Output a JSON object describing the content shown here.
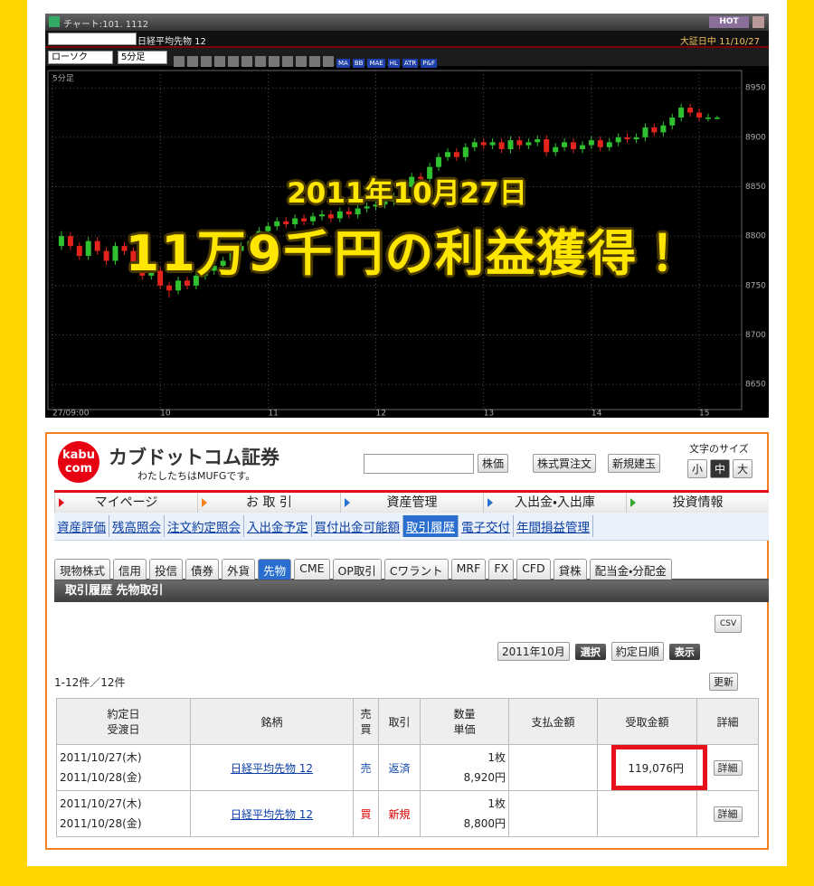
{
  "chart_window": {
    "title": "チャート:101. 1112",
    "hot": "HOT",
    "symbol": "日経平均先物 12",
    "session": "大証日中 11/10/27",
    "chart_type": "ローソク",
    "interval": "5分足",
    "toolbar": [
      "MA",
      "BB",
      "MAE",
      "HL",
      "ATR",
      "P&F"
    ]
  },
  "chart_data": {
    "type": "candlestick",
    "label": "5分足",
    "up_color": "#2fc12f",
    "down_color": "#e3241d",
    "grid": true,
    "x": [
      9.083,
      9.167,
      9.25,
      9.333,
      9.417,
      9.5,
      9.583,
      9.667,
      9.75,
      9.833,
      9.917,
      10,
      10.083,
      10.167,
      10.25,
      10.333,
      10.417,
      10.5,
      10.583,
      10.667,
      10.75,
      10.833,
      10.917,
      11,
      11.083,
      11.167,
      11.25,
      11.333,
      11.417,
      11.5,
      11.583,
      11.667,
      11.75,
      11.833,
      11.917,
      12,
      12.083,
      12.167,
      12.25,
      12.333,
      12.417,
      12.5,
      12.583,
      12.667,
      12.75,
      12.833,
      12.917,
      13,
      13.083,
      13.167,
      13.25,
      13.333,
      13.417,
      13.5,
      13.583,
      13.667,
      13.75,
      13.833,
      13.917,
      14,
      14.083,
      14.167,
      14.25,
      14.333,
      14.417,
      14.5,
      14.583,
      14.667,
      14.75,
      14.833,
      14.917,
      15,
      15.083,
      15.167
    ],
    "open": [
      8790,
      8800,
      8790,
      8780,
      8795,
      8785,
      8775,
      8790,
      8785,
      8770,
      8760,
      8765,
      8750,
      8745,
      8755,
      8750,
      8760,
      8765,
      8770,
      8775,
      8785,
      8790,
      8795,
      8805,
      8810,
      8815,
      8812,
      8818,
      8815,
      8820,
      8822,
      8818,
      8825,
      8822,
      8828,
      8830,
      8832,
      8835,
      8840,
      8850,
      8860,
      8858,
      8870,
      8880,
      8885,
      8880,
      8890,
      8895,
      8892,
      8895,
      8888,
      8897,
      8892,
      8895,
      8898,
      8885,
      8890,
      8895,
      8888,
      8892,
      8897,
      8890,
      8895,
      8900,
      8898,
      8900,
      8910,
      8905,
      8912,
      8920,
      8930,
      8925,
      8920,
      8920
    ],
    "high": [
      8805,
      8804,
      8794,
      8799,
      8799,
      8789,
      8794,
      8794,
      8789,
      8774,
      8769,
      8769,
      8754,
      8759,
      8759,
      8764,
      8769,
      8774,
      8779,
      8789,
      8794,
      8799,
      8809,
      8814,
      8819,
      8819,
      8822,
      8822,
      8824,
      8826,
      8826,
      8829,
      8829,
      8832,
      8834,
      8836,
      8839,
      8844,
      8854,
      8864,
      8864,
      8874,
      8884,
      8889,
      8889,
      8894,
      8899,
      8899,
      8899,
      8899,
      8901,
      8901,
      8899,
      8902,
      8902,
      8894,
      8899,
      8899,
      8896,
      8901,
      8901,
      8899,
      8904,
      8904,
      8904,
      8914,
      8914,
      8916,
      8924,
      8934,
      8934,
      8929,
      8924,
      8922
    ],
    "low": [
      8786,
      8786,
      8776,
      8776,
      8781,
      8771,
      8771,
      8781,
      8766,
      8756,
      8756,
      8746,
      8738,
      8741,
      8746,
      8746,
      8756,
      8761,
      8766,
      8771,
      8781,
      8786,
      8791,
      8801,
      8806,
      8808,
      8808,
      8811,
      8811,
      8816,
      8814,
      8814,
      8818,
      8818,
      8824,
      8826,
      8828,
      8831,
      8836,
      8846,
      8854,
      8854,
      8866,
      8876,
      8876,
      8876,
      8886,
      8888,
      8888,
      8884,
      8884,
      8888,
      8888,
      8891,
      8881,
      8881,
      8886,
      8884,
      8884,
      8888,
      8886,
      8886,
      8891,
      8894,
      8894,
      8896,
      8901,
      8901,
      8908,
      8916,
      8921,
      8916,
      8916,
      8918
    ],
    "close": [
      8800,
      8790,
      8780,
      8795,
      8785,
      8775,
      8790,
      8785,
      8770,
      8760,
      8765,
      8750,
      8745,
      8755,
      8750,
      8760,
      8765,
      8770,
      8775,
      8785,
      8790,
      8795,
      8805,
      8810,
      8815,
      8812,
      8818,
      8815,
      8820,
      8822,
      8818,
      8825,
      8822,
      8828,
      8830,
      8832,
      8835,
      8840,
      8850,
      8860,
      8858,
      8870,
      8880,
      8885,
      8880,
      8890,
      8895,
      8892,
      8895,
      8888,
      8897,
      8892,
      8895,
      8898,
      8885,
      8890,
      8895,
      8888,
      8892,
      8897,
      8890,
      8895,
      8900,
      8898,
      8900,
      8910,
      8905,
      8912,
      8920,
      8930,
      8925,
      8920,
      8920,
      8920
    ],
    "xlim": [
      8.958,
      15.394
    ],
    "xticks": [
      {
        "value": 9,
        "label": "27/09:00"
      },
      10,
      11,
      12,
      13,
      14,
      15
    ],
    "ylim": [
      8630,
      8963
    ],
    "yticks": [
      8650,
      8700,
      8750,
      8800,
      8850,
      8900,
      8950
    ]
  },
  "overlay": {
    "date": "2011年10月27日",
    "headline": "11万9千円の利益獲得！"
  },
  "site": {
    "logo": [
      "kabu",
      "com"
    ],
    "name": "カブドットコム証券",
    "tagline": "わたしたちはMUFGです。",
    "search_button": "株価",
    "buttons": [
      "株式買注文",
      "新規建玉"
    ],
    "font_size_label": "文字のサイズ",
    "font_sizes": [
      "小",
      "中",
      "大"
    ],
    "nav": [
      "マイページ",
      "お 取 引",
      "資産管理",
      "入出金・入出庫",
      "投資情報"
    ],
    "subnav": [
      "資産評価",
      "残高照会",
      "注文約定照会",
      "入出金予定",
      "買付出金可能額",
      "取引履歴",
      "電子交付",
      "年間損益管理"
    ],
    "tabs": [
      "現物株式",
      "信用",
      "投信",
      "債券",
      "外貨",
      "先物",
      "CME",
      "OP取引",
      "Cワラント",
      "MRF",
      "FX",
      "CFD",
      "貸株",
      "配当金・分配金"
    ],
    "section_title": "取引履歴 先物取引",
    "csv": "CSV",
    "month_select": "2011年10月",
    "select_button": "選択",
    "order_select": "約定日順",
    "show_button": "表示",
    "count": "1-12件／12件",
    "refresh": "更新",
    "table": {
      "headers": [
        [
          "約定日",
          "受渡日"
        ],
        [
          "銘柄"
        ],
        [
          "売",
          "買"
        ],
        [
          "取引"
        ],
        [
          "数量",
          "単価"
        ],
        [
          "支払金額"
        ],
        [
          "受取金額"
        ],
        [
          "詳細"
        ]
      ],
      "rows": [
        {
          "dates": [
            "2011/10/27(木)",
            "2011/10/28(金)"
          ],
          "issue": "日経平均先物 12",
          "side": "売",
          "trade": "返済",
          "quantity": "1枚",
          "price": "8,920円",
          "received": "119,076円",
          "detail": "詳細"
        },
        {
          "dates": [
            "2011/10/27(木)",
            "2011/10/28(金)"
          ],
          "issue": "日経平均先物 12",
          "side": "買",
          "trade": "新規",
          "quantity": "1枚",
          "price": "8,800円",
          "detail": "詳細"
        }
      ]
    }
  }
}
